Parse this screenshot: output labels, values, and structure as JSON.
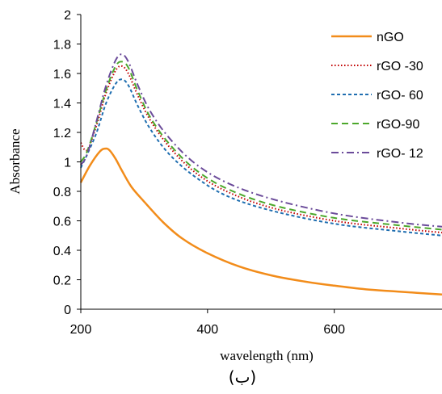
{
  "chart_data": {
    "type": "line",
    "xlabel": "wavelength (nm)",
    "ylabel": "Absorbance",
    "xlim": [
      200,
      770
    ],
    "ylim": [
      0,
      2
    ],
    "xticks": [
      "200",
      "400",
      "600"
    ],
    "yticks": [
      "0",
      "0.2",
      "0.4",
      "0.6",
      "0.8",
      "1",
      "1.2",
      "1.4",
      "1.6",
      "1.8",
      "2"
    ],
    "grid": false,
    "legend_position": "top-right",
    "caption": "(ب)",
    "series": [
      {
        "name": "nGO",
        "color": "#F28C1A",
        "dash": "solid",
        "x": [
          200,
          215,
          230,
          238,
          245,
          255,
          265,
          280,
          300,
          330,
          360,
          400,
          450,
          500,
          550,
          600,
          650,
          700,
          770
        ],
        "y": [
          0.86,
          0.98,
          1.07,
          1.09,
          1.08,
          1.02,
          0.94,
          0.83,
          0.73,
          0.59,
          0.48,
          0.38,
          0.29,
          0.23,
          0.19,
          0.16,
          0.135,
          0.12,
          0.1
        ]
      },
      {
        "name": "rGO -30",
        "color": "#C00000",
        "dash": "dotted",
        "x": [
          200,
          210,
          225,
          240,
          255,
          265,
          275,
          290,
          310,
          340,
          380,
          430,
          500,
          600,
          700,
          770
        ],
        "y": [
          1.13,
          1.08,
          1.25,
          1.47,
          1.62,
          1.65,
          1.6,
          1.45,
          1.28,
          1.1,
          0.93,
          0.8,
          0.69,
          0.6,
          0.55,
          0.52
        ]
      },
      {
        "name": "rGO- 60",
        "color": "#1F6EB0",
        "dash": "dashed",
        "x": [
          200,
          210,
          225,
          240,
          255,
          265,
          275,
          290,
          310,
          340,
          380,
          430,
          500,
          600,
          700,
          770
        ],
        "y": [
          0.96,
          1.05,
          1.2,
          1.4,
          1.53,
          1.56,
          1.52,
          1.38,
          1.22,
          1.05,
          0.9,
          0.77,
          0.67,
          0.58,
          0.53,
          0.5
        ]
      },
      {
        "name": "rGO-90",
        "color": "#4CA82C",
        "dash": "longdash",
        "x": [
          200,
          210,
          225,
          240,
          255,
          265,
          275,
          290,
          310,
          340,
          380,
          430,
          500,
          600,
          700,
          770
        ],
        "y": [
          1.0,
          1.07,
          1.27,
          1.49,
          1.65,
          1.68,
          1.64,
          1.48,
          1.3,
          1.12,
          0.95,
          0.82,
          0.71,
          0.62,
          0.57,
          0.54
        ]
      },
      {
        "name": "rGO- 12",
        "color": "#6B4B9A",
        "dash": "dashdot",
        "x": [
          200,
          210,
          225,
          240,
          255,
          265,
          275,
          290,
          310,
          340,
          380,
          430,
          500,
          600,
          700,
          770
        ],
        "y": [
          0.98,
          1.05,
          1.28,
          1.52,
          1.69,
          1.73,
          1.68,
          1.52,
          1.34,
          1.16,
          0.99,
          0.86,
          0.75,
          0.65,
          0.59,
          0.56
        ]
      }
    ]
  }
}
